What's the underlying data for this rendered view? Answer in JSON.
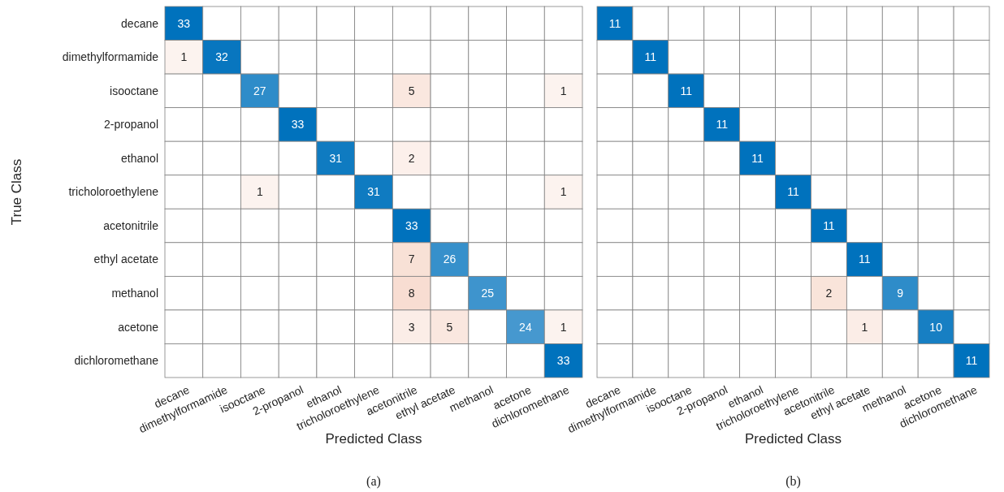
{
  "chart_data": [
    {
      "type": "heatmap",
      "xlabel": "Predicted Class",
      "ylabel": "True Class",
      "annotations": [
        "(a)"
      ],
      "data_labels": true,
      "categories": [
        "decane",
        "dimethylformamide",
        "isooctane",
        "2-propanol",
        "ethanol",
        "tricholoroethylene",
        "acetonitrile",
        "ethyl acetate",
        "methanol",
        "acetone",
        "dichloromethane"
      ],
      "y_categories": [
        "decane",
        "dimethylformamide",
        "isooctane",
        "2-propanol",
        "ethanol",
        "tricholoroethylene",
        "acetonitrile",
        "ethyl acetate",
        "methanol",
        "acetone",
        "dichloromethane"
      ],
      "cells": [
        [
          33,
          null,
          null,
          null,
          null,
          null,
          null,
          null,
          null,
          null,
          null
        ],
        [
          1,
          32,
          null,
          null,
          null,
          null,
          null,
          null,
          null,
          null,
          null
        ],
        [
          null,
          null,
          27,
          null,
          null,
          null,
          5,
          null,
          null,
          null,
          1
        ],
        [
          null,
          null,
          null,
          33,
          null,
          null,
          null,
          null,
          null,
          null,
          null
        ],
        [
          null,
          null,
          null,
          null,
          31,
          null,
          2,
          null,
          null,
          null,
          null
        ],
        [
          null,
          null,
          1,
          null,
          null,
          31,
          null,
          null,
          null,
          null,
          1
        ],
        [
          null,
          null,
          null,
          null,
          null,
          null,
          33,
          null,
          null,
          null,
          null
        ],
        [
          null,
          null,
          null,
          null,
          null,
          null,
          7,
          26,
          null,
          null,
          null
        ],
        [
          null,
          null,
          null,
          null,
          null,
          null,
          8,
          null,
          25,
          null,
          null
        ],
        [
          null,
          null,
          null,
          null,
          null,
          null,
          3,
          5,
          null,
          24,
          1
        ],
        [
          null,
          null,
          null,
          null,
          null,
          null,
          null,
          null,
          null,
          null,
          33
        ]
      ]
    },
    {
      "type": "heatmap",
      "xlabel": "Predicted Class",
      "annotations": [
        "(b)"
      ],
      "tick_labels": "x",
      "data_labels": true,
      "categories": [
        "decane",
        "dimethylformamide",
        "isooctane",
        "2-propanol",
        "ethanol",
        "tricholoroethylene",
        "acetonitrile",
        "ethyl acetate",
        "methanol",
        "acetone",
        "dichloromethane"
      ],
      "y_categories": [
        null,
        null,
        null,
        null,
        null,
        null,
        null,
        null,
        null,
        null,
        null
      ],
      "cells": [
        [
          11,
          null,
          null,
          null,
          null,
          null,
          null,
          null,
          null,
          null,
          null
        ],
        [
          null,
          11,
          null,
          null,
          null,
          null,
          null,
          null,
          null,
          null,
          null
        ],
        [
          null,
          null,
          11,
          null,
          null,
          null,
          null,
          null,
          null,
          null,
          null
        ],
        [
          null,
          null,
          null,
          11,
          null,
          null,
          null,
          null,
          null,
          null,
          null
        ],
        [
          null,
          null,
          null,
          null,
          11,
          null,
          null,
          null,
          null,
          null,
          null
        ],
        [
          null,
          null,
          null,
          null,
          null,
          11,
          null,
          null,
          null,
          null,
          null
        ],
        [
          null,
          null,
          null,
          null,
          null,
          null,
          11,
          null,
          null,
          null,
          null
        ],
        [
          null,
          null,
          null,
          null,
          null,
          null,
          null,
          11,
          null,
          null,
          null
        ],
        [
          null,
          null,
          null,
          null,
          null,
          null,
          2,
          null,
          9,
          null,
          null
        ],
        [
          null,
          null,
          null,
          null,
          null,
          null,
          null,
          1,
          null,
          10,
          null
        ],
        [
          null,
          null,
          null,
          null,
          null,
          null,
          null,
          null,
          null,
          null,
          11
        ]
      ]
    }
  ]
}
